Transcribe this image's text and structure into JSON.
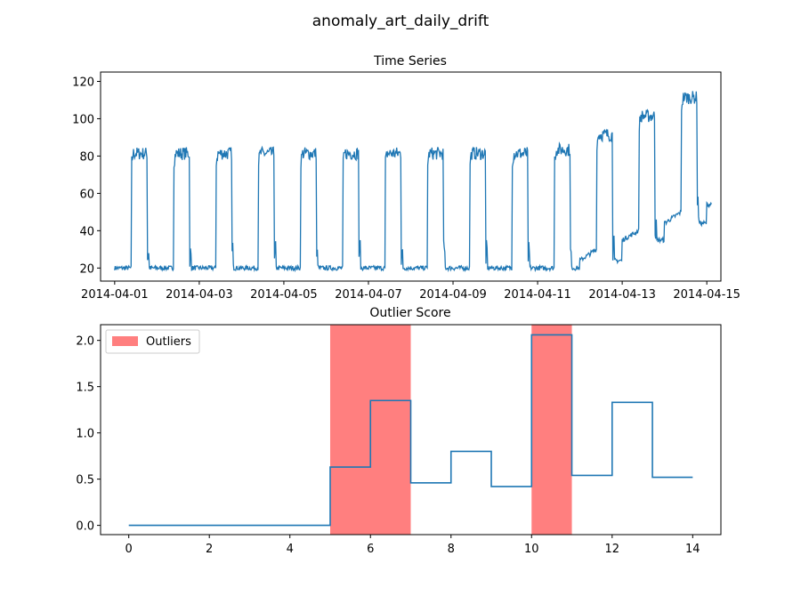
{
  "figure": {
    "suptitle": "anomaly_art_daily_drift"
  },
  "colors": {
    "line": "#1f77b4",
    "outlier_fill": "#ff7f7f",
    "axes": "#000000"
  },
  "chart_data": [
    {
      "type": "line",
      "title": "Time Series",
      "xlabel": "",
      "ylabel": "",
      "x_start": "2014-04-01",
      "x_end": "2014-04-15",
      "xlim": [
        "2014-03-31T16:00",
        "2014-04-15T08:00"
      ],
      "ylim": [
        13,
        125
      ],
      "x_ticks": [
        "2014-04-01",
        "2014-04-03",
        "2014-04-05",
        "2014-04-07",
        "2014-04-09",
        "2014-04-11",
        "2014-04-13",
        "2014-04-15"
      ],
      "y_ticks": [
        20,
        40,
        60,
        80,
        100,
        120
      ],
      "series": [
        {
          "pattern": "daily on/off cycle with noise",
          "days": [
            {
              "date": "2014-04-01",
              "low": 20,
              "high": 80,
              "on": 0.39,
              "off": 0.77
            },
            {
              "date": "2014-04-02",
              "low": 20,
              "high": 80,
              "on": 0.39,
              "off": 0.77
            },
            {
              "date": "2014-04-03",
              "low": 20,
              "high": 80,
              "on": 0.39,
              "off": 0.77
            },
            {
              "date": "2014-04-04",
              "low": 20,
              "high": 80,
              "on": 0.39,
              "off": 0.77
            },
            {
              "date": "2014-04-05",
              "low": 20,
              "high": 80,
              "on": 0.39,
              "off": 0.77
            },
            {
              "date": "2014-04-06",
              "low": 20,
              "high": 80,
              "on": 0.39,
              "off": 0.77
            },
            {
              "date": "2014-04-07",
              "low": 20,
              "high": 80,
              "on": 0.39,
              "off": 0.77
            },
            {
              "date": "2014-04-08",
              "low": 20,
              "high": 80,
              "on": 0.39,
              "off": 0.77
            },
            {
              "date": "2014-04-09",
              "low": 20,
              "high": 80,
              "on": 0.39,
              "off": 0.77
            },
            {
              "date": "2014-04-10",
              "low": 20,
              "high": 80,
              "on": 0.39,
              "off": 0.77
            },
            {
              "date": "2014-04-11",
              "low": 20,
              "high": 82,
              "on": 0.39,
              "off": 0.77
            },
            {
              "date": "2014-04-12",
              "low": 24,
              "low_end": 30,
              "high": 90,
              "on": 0.39,
              "off": 0.77
            },
            {
              "date": "2014-04-13",
              "low": 35,
              "low_end": 40,
              "high": 100,
              "on": 0.39,
              "off": 0.77
            },
            {
              "date": "2014-04-14",
              "low": 44,
              "low_end": 50,
              "high": 110,
              "on": 0.39,
              "off": 0.77
            },
            {
              "date": "2014-04-15",
              "low": 54,
              "low_end": 56,
              "high": 56,
              "on": 1.0,
              "off": 1.0
            }
          ]
        }
      ]
    },
    {
      "type": "line",
      "step": "post",
      "title": "Outlier Score",
      "xlabel": "",
      "ylabel": "",
      "xlim": [
        -0.7,
        14.7
      ],
      "ylim": [
        -0.1,
        2.17
      ],
      "x_ticks": [
        0,
        2,
        4,
        6,
        8,
        10,
        12,
        14
      ],
      "y_ticks": [
        0.0,
        0.5,
        1.0,
        1.5,
        2.0
      ],
      "y_tick_labels": [
        "0.0",
        "0.5",
        "1.0",
        "1.5",
        "2.0"
      ],
      "series": [
        {
          "x": [
            0,
            1,
            2,
            3,
            4,
            5,
            6,
            7,
            8,
            9,
            10,
            11,
            12,
            13,
            14
          ],
          "values": [
            0,
            0,
            0,
            0,
            0,
            0.63,
            1.35,
            0.46,
            0.8,
            0.42,
            2.06,
            0.54,
            1.33,
            0.52,
            0.52
          ]
        }
      ],
      "outlier_regions": [
        [
          5,
          7
        ],
        [
          10,
          11
        ]
      ],
      "legend": {
        "label": "Outliers",
        "placement": "upper-left"
      }
    }
  ]
}
